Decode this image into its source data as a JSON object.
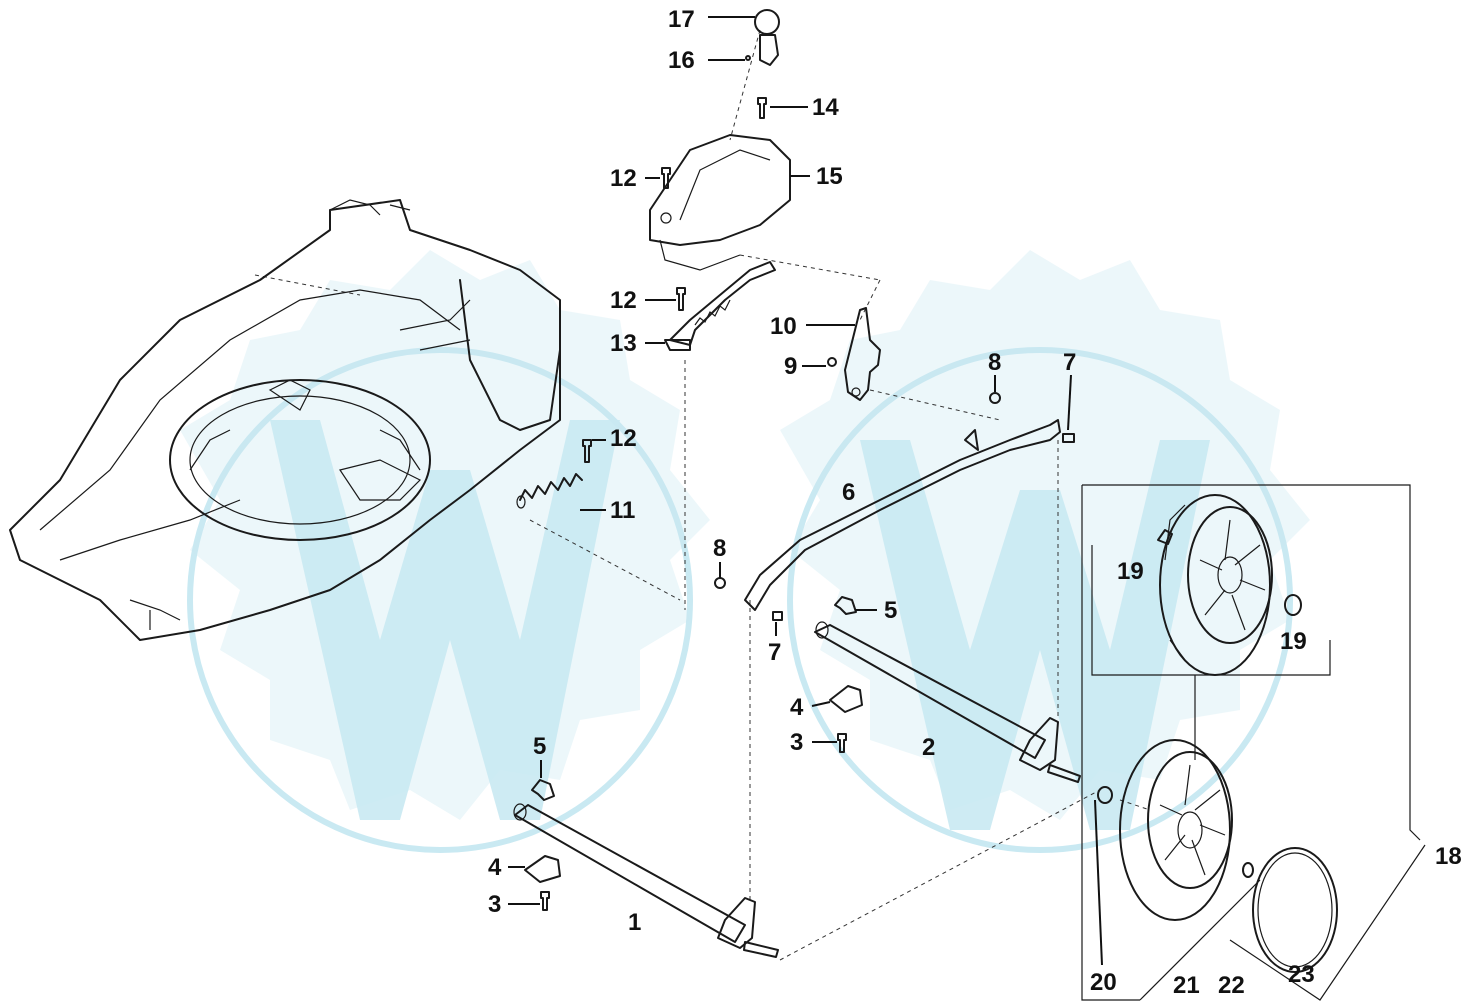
{
  "diagram": {
    "callouts": [
      {
        "id": "c17",
        "text": "17"
      },
      {
        "id": "c16",
        "text": "16"
      },
      {
        "id": "c14",
        "text": "14"
      },
      {
        "id": "c12a",
        "text": "12"
      },
      {
        "id": "c15",
        "text": "15"
      },
      {
        "id": "c12b",
        "text": "12"
      },
      {
        "id": "c10",
        "text": "10"
      },
      {
        "id": "c13",
        "text": "13"
      },
      {
        "id": "c9",
        "text": "9"
      },
      {
        "id": "c8a",
        "text": "8"
      },
      {
        "id": "c7a",
        "text": "7"
      },
      {
        "id": "c12c",
        "text": "12"
      },
      {
        "id": "c11",
        "text": "11"
      },
      {
        "id": "c6",
        "text": "6"
      },
      {
        "id": "c8b",
        "text": "8"
      },
      {
        "id": "c19a",
        "text": "19"
      },
      {
        "id": "c19b",
        "text": "19"
      },
      {
        "id": "c5a",
        "text": "5"
      },
      {
        "id": "c7b",
        "text": "7"
      },
      {
        "id": "c4a",
        "text": "4"
      },
      {
        "id": "c2",
        "text": "2"
      },
      {
        "id": "c3a",
        "text": "3"
      },
      {
        "id": "c5b",
        "text": "5"
      },
      {
        "id": "c18",
        "text": "18"
      },
      {
        "id": "c4b",
        "text": "4"
      },
      {
        "id": "c1",
        "text": "1"
      },
      {
        "id": "c3b",
        "text": "3"
      },
      {
        "id": "c20",
        "text": "20"
      },
      {
        "id": "c21",
        "text": "21"
      },
      {
        "id": "c22",
        "text": "22"
      },
      {
        "id": "c23",
        "text": "23"
      }
    ],
    "colors": {
      "line": "#1a1a1a",
      "watermark": "#c9e9f2",
      "background": "#ffffff"
    }
  }
}
